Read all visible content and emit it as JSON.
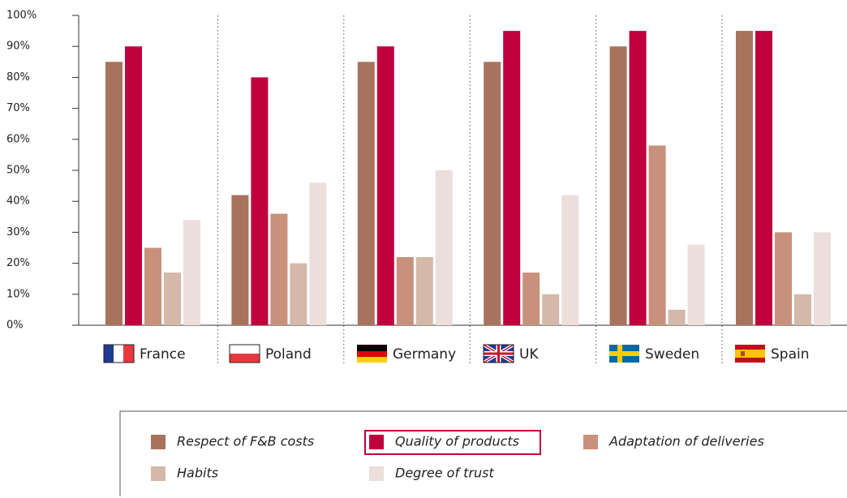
{
  "chart_data": {
    "type": "bar",
    "categories": [
      "France",
      "Poland",
      "Germany",
      "UK",
      "Sweden",
      "Spain"
    ],
    "series": [
      {
        "name": "Respect of F&B costs",
        "color": "#a8735c",
        "values": [
          85,
          42,
          85,
          85,
          90,
          95
        ]
      },
      {
        "name": "Quality of products",
        "color": "#c0003c",
        "values": [
          90,
          80,
          90,
          95,
          95,
          95
        ]
      },
      {
        "name": "Adaptation of deliveries",
        "color": "#c8917c",
        "values": [
          25,
          36,
          22,
          17,
          58,
          30
        ]
      },
      {
        "name": "Habits",
        "color": "#d4b8aa",
        "values": [
          17,
          20,
          22,
          10,
          5,
          10
        ]
      },
      {
        "name": "Degree of trust",
        "color": "#ebdedb",
        "values": [
          34,
          46,
          50,
          42,
          26,
          30
        ]
      }
    ],
    "ylim": [
      0,
      100
    ],
    "yticks": [
      {
        "value": 0,
        "label": "0%"
      },
      {
        "value": 10,
        "label": "10%"
      },
      {
        "value": 20,
        "label": "20%"
      },
      {
        "value": 30,
        "label": "30%"
      },
      {
        "value": 40,
        "label": "40%"
      },
      {
        "value": 50,
        "label": "50%"
      },
      {
        "value": 60,
        "label": "60%"
      },
      {
        "value": 70,
        "label": "70%"
      },
      {
        "value": 80,
        "label": "80%"
      },
      {
        "value": 90,
        "label": "90%"
      },
      {
        "value": 100,
        "label": "100%"
      }
    ]
  }
}
